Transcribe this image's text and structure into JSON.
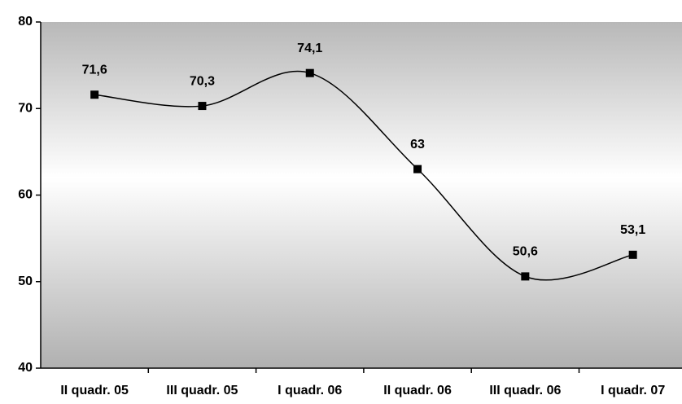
{
  "chart_data": {
    "type": "line",
    "categories": [
      "II quadr. 05",
      "III quadr. 05",
      "I quadr. 06",
      "II quadr. 06",
      "III quadr. 06",
      "I quadr. 07"
    ],
    "series": [
      {
        "name": "",
        "color": "#000000",
        "values": [
          71.6,
          70.3,
          74.1,
          63,
          50.6,
          53.1
        ],
        "value_labels": [
          "71,6",
          "70,3",
          "74,1",
          "63",
          "50,6",
          "53,1"
        ]
      }
    ],
    "ylim": [
      40,
      80
    ],
    "yticks": [
      40,
      50,
      60,
      70,
      80
    ],
    "smooth": true
  }
}
